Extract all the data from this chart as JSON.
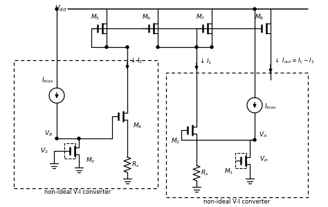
{
  "bg_color": "#ffffff",
  "fig_width": 4.74,
  "fig_height": 2.99,
  "dpi": 100
}
